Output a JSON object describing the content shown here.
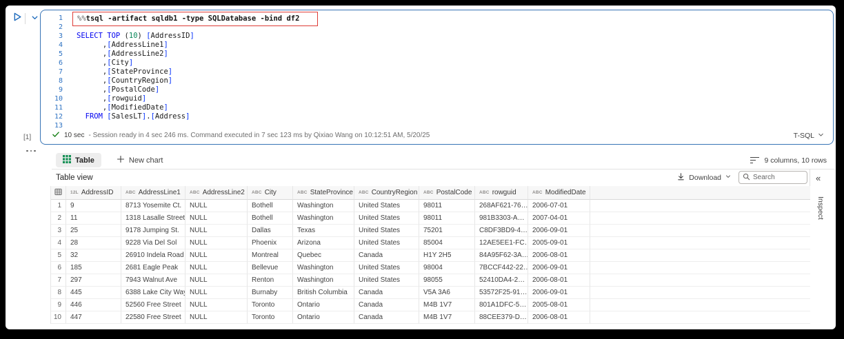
{
  "editor": {
    "exec_count": "[1]",
    "language": "T-SQL",
    "status": {
      "duration": "10 sec",
      "message": "- Session ready in 4 sec 246 ms. Command executed in 7 sec 123 ms by Qixiao Wang on 10:12:51 AM, 5/20/25"
    },
    "code_lines": [
      {
        "no": "1",
        "boxed": true,
        "seg": [
          [
            "mp",
            "%%"
          ],
          [
            "m",
            "tsql -artifact sqldb1 -type SQLDatabase -bind df2"
          ]
        ]
      },
      {
        "no": "2",
        "seg": []
      },
      {
        "no": "3",
        "seg": [
          [
            "k",
            "SELECT"
          ],
          [
            "t",
            " "
          ],
          [
            "k",
            "TOP"
          ],
          [
            "t",
            " ("
          ],
          [
            "n",
            "10"
          ],
          [
            "t",
            ") "
          ],
          [
            "b",
            "["
          ],
          [
            "t",
            "AddressID"
          ],
          [
            "b",
            "]"
          ]
        ]
      },
      {
        "no": "4",
        "seg": [
          [
            "t",
            "      ,"
          ],
          [
            "b",
            "["
          ],
          [
            "t",
            "AddressLine1"
          ],
          [
            "b",
            "]"
          ]
        ]
      },
      {
        "no": "5",
        "seg": [
          [
            "t",
            "      ,"
          ],
          [
            "b",
            "["
          ],
          [
            "t",
            "AddressLine2"
          ],
          [
            "b",
            "]"
          ]
        ]
      },
      {
        "no": "6",
        "seg": [
          [
            "t",
            "      ,"
          ],
          [
            "b",
            "["
          ],
          [
            "t",
            "City"
          ],
          [
            "b",
            "]"
          ]
        ]
      },
      {
        "no": "7",
        "seg": [
          [
            "t",
            "      ,"
          ],
          [
            "b",
            "["
          ],
          [
            "t",
            "StateProvince"
          ],
          [
            "b",
            "]"
          ]
        ]
      },
      {
        "no": "8",
        "seg": [
          [
            "t",
            "      ,"
          ],
          [
            "b",
            "["
          ],
          [
            "t",
            "CountryRegion"
          ],
          [
            "b",
            "]"
          ]
        ]
      },
      {
        "no": "9",
        "seg": [
          [
            "t",
            "      ,"
          ],
          [
            "b",
            "["
          ],
          [
            "t",
            "PostalCode"
          ],
          [
            "b",
            "]"
          ]
        ]
      },
      {
        "no": "10",
        "seg": [
          [
            "t",
            "      ,"
          ],
          [
            "b",
            "["
          ],
          [
            "t",
            "rowguid"
          ],
          [
            "b",
            "]"
          ]
        ]
      },
      {
        "no": "11",
        "seg": [
          [
            "t",
            "      ,"
          ],
          [
            "b",
            "["
          ],
          [
            "t",
            "ModifiedDate"
          ],
          [
            "b",
            "]"
          ]
        ]
      },
      {
        "no": "12",
        "seg": [
          [
            "t",
            "  "
          ],
          [
            "k",
            "FROM"
          ],
          [
            "t",
            " "
          ],
          [
            "b",
            "["
          ],
          [
            "t",
            "SalesLT"
          ],
          [
            "b",
            "]"
          ],
          [
            "t",
            "."
          ],
          [
            "b",
            "["
          ],
          [
            "t",
            "Address"
          ],
          [
            "b",
            "]"
          ]
        ]
      },
      {
        "no": "13",
        "seg": []
      }
    ]
  },
  "results": {
    "tabs": {
      "table": "Table",
      "new_chart": "New chart",
      "summary": "9 columns, 10 rows"
    },
    "toolbar": {
      "title": "Table view",
      "download": "Download",
      "search_placeholder": "Search"
    },
    "inspect": "Inspect",
    "grid": {
      "columns": [
        {
          "type_icon": "12L",
          "label": "AddressID"
        },
        {
          "type_icon": "ABC",
          "label": "AddressLine1"
        },
        {
          "type_icon": "ABC",
          "label": "AddressLine2"
        },
        {
          "type_icon": "ABC",
          "label": "City"
        },
        {
          "type_icon": "ABC",
          "label": "StateProvince"
        },
        {
          "type_icon": "ABC",
          "label": "CountryRegion"
        },
        {
          "type_icon": "ABC",
          "label": "PostalCode"
        },
        {
          "type_icon": "ABC",
          "label": "rowguid"
        },
        {
          "type_icon": "ABC",
          "label": "ModifiedDate"
        }
      ],
      "rows": [
        [
          "1",
          "9",
          "8713 Yosemite Ct.",
          "NULL",
          "Bothell",
          "Washington",
          "United States",
          "98011",
          "268AF621-76…",
          "2006-07-01"
        ],
        [
          "2",
          "11",
          "1318 Lasalle Street",
          "NULL",
          "Bothell",
          "Washington",
          "United States",
          "98011",
          "981B3303-A…",
          "2007-04-01"
        ],
        [
          "3",
          "25",
          "9178 Jumping St.",
          "NULL",
          "Dallas",
          "Texas",
          "United States",
          "75201",
          "C8DF3BD9-4…",
          "2006-09-01"
        ],
        [
          "4",
          "28",
          "9228 Via Del Sol",
          "NULL",
          "Phoenix",
          "Arizona",
          "United States",
          "85004",
          "12AE5EE1-FC…",
          "2005-09-01"
        ],
        [
          "5",
          "32",
          "26910 Indela Road",
          "NULL",
          "Montreal",
          "Quebec",
          "Canada",
          "H1Y 2H5",
          "84A95F62-3A…",
          "2006-08-01"
        ],
        [
          "6",
          "185",
          "2681 Eagle Peak",
          "NULL",
          "Bellevue",
          "Washington",
          "United States",
          "98004",
          "7BCCF442-22…",
          "2006-09-01"
        ],
        [
          "7",
          "297",
          "7943 Walnut Ave",
          "NULL",
          "Renton",
          "Washington",
          "United States",
          "98055",
          "52410DA4-2…",
          "2006-08-01"
        ],
        [
          "8",
          "445",
          "6388 Lake City Way",
          "NULL",
          "Burnaby",
          "British Columbia",
          "Canada",
          "V5A 3A6",
          "53572F25-91…",
          "2006-09-01"
        ],
        [
          "9",
          "446",
          "52560 Free Street",
          "NULL",
          "Toronto",
          "Ontario",
          "Canada",
          "M4B 1V7",
          "801A1DFC-5…",
          "2005-08-01"
        ],
        [
          "10",
          "447",
          "22580 Free Street",
          "NULL",
          "Toronto",
          "Ontario",
          "Canada",
          "M4B 1V7",
          "88CEE379-D…",
          "2006-08-01"
        ]
      ]
    }
  },
  "colors": {
    "accent_blue": "#1f6cbd",
    "cell_border_blue": "#3673b5",
    "magic_box_red": "#de3b36",
    "success_green": "#107c10",
    "table_icon_green": "#149055"
  }
}
